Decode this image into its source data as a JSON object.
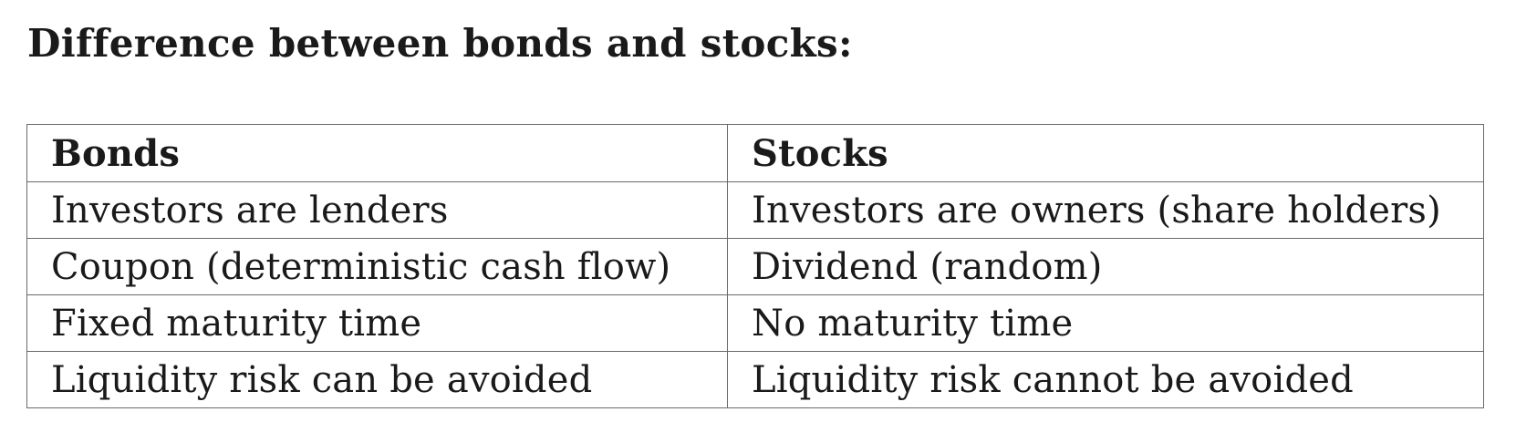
{
  "title": "Difference between bonds and stocks:",
  "table": {
    "headers": [
      "Bonds",
      "Stocks"
    ],
    "rows": [
      [
        "Investors are lenders",
        "Investors are owners (share holders)"
      ],
      [
        "Coupon (deterministic cash flow)",
        "Dividend (random)"
      ],
      [
        "Fixed maturity time",
        "No maturity time"
      ],
      [
        "Liquidity risk can be avoided",
        "Liquidity risk cannot be avoided"
      ]
    ]
  }
}
